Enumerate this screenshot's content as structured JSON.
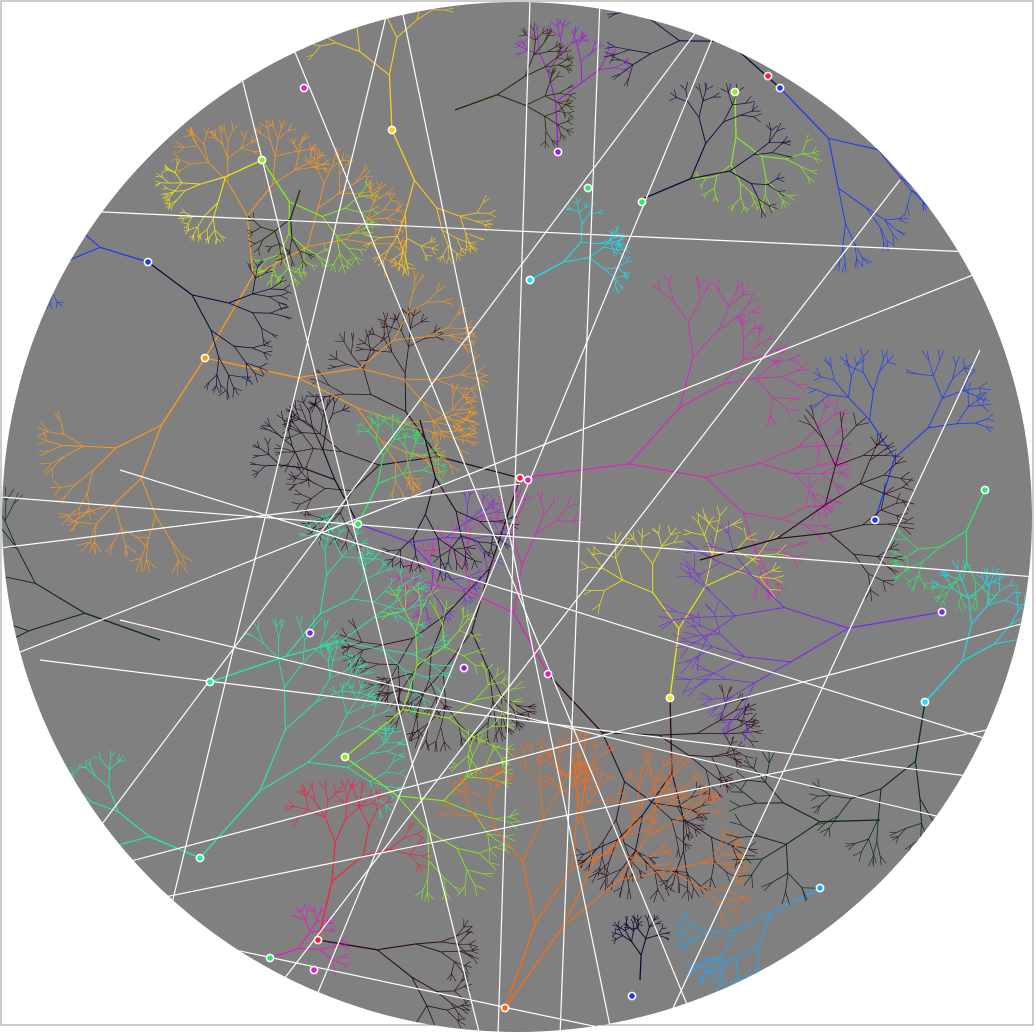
{
  "scene": {
    "description_kind": "simulation",
    "disc_fill": "#808080",
    "frame_color": "#9a9a9a",
    "background": "#ffffff",
    "cut_line_color": "#ffffff",
    "seed_marker_color": "#ffffff"
  },
  "palette": {
    "magenta": "#e01fc0",
    "orange": "#ff9a1a",
    "deep_orange": "#ff6a10",
    "yellow": "#f2e61a",
    "gold": "#ffcc1a",
    "lime": "#8cf01a",
    "green": "#2ee86a",
    "teal": "#1ef0a8",
    "cyan": "#1ae0f0",
    "sky": "#1aa8ff",
    "blue": "#1a3cf0",
    "royal": "#2a50e8",
    "violet": "#7a2ae8",
    "purple": "#a01ae0",
    "red": "#ff1a3c",
    "dark_navy": "#0c0c3a",
    "dark_maroon": "#2a0c1a",
    "dark_olive": "#2a2a0a",
    "dark_green": "#0a2a14",
    "dark_purple": "#1a0a2a"
  }
}
